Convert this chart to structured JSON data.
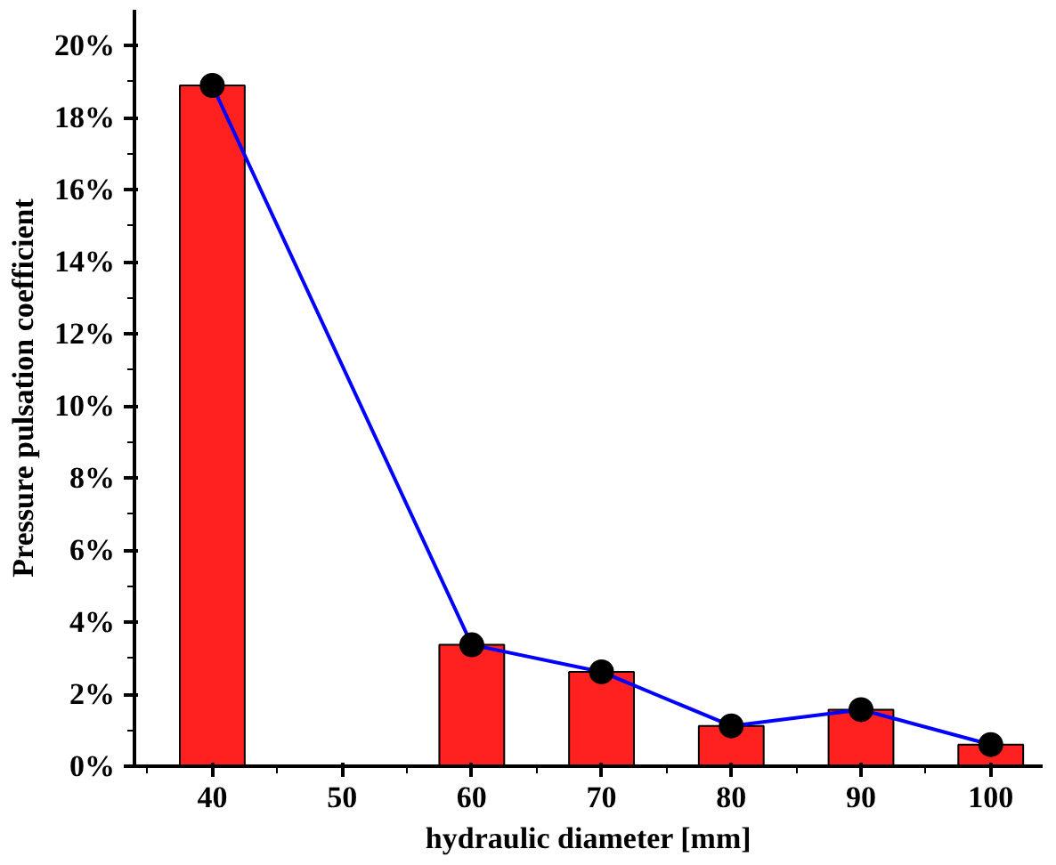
{
  "chart_data": {
    "type": "bar",
    "xlabel": "hydraulic diameter [mm]",
    "ylabel": "Pressure pulsation coefficient",
    "x": [
      40,
      60,
      70,
      80,
      90,
      100
    ],
    "series": [
      {
        "color": "#ff2020",
        "values": [
          18.9,
          3.37,
          2.62,
          1.12,
          1.57,
          0.6
        ]
      },
      {
        "type": "line",
        "color": "#0000ff",
        "marker": "circle",
        "line_style": "solid",
        "values": [
          18.9,
          3.37,
          2.62,
          1.12,
          1.57,
          0.6
        ]
      }
    ],
    "xlim": [
      34,
      104
    ],
    "xticks": [
      40,
      50,
      60,
      70,
      80,
      90,
      100
    ],
    "ylim": [
      0,
      21
    ],
    "yticks": [
      {
        "value": 0,
        "label": "0%"
      },
      {
        "value": 2,
        "label": "2%"
      },
      {
        "value": 4,
        "label": "4%"
      },
      {
        "value": 6,
        "label": "6%"
      },
      {
        "value": 8,
        "label": "8%"
      },
      {
        "value": 10,
        "label": "10%"
      },
      {
        "value": 12,
        "label": "12%"
      },
      {
        "value": 14,
        "label": "14%"
      },
      {
        "value": 16,
        "label": "16%"
      },
      {
        "value": 18,
        "label": "18%"
      },
      {
        "value": 20,
        "label": "20%"
      }
    ],
    "grid": false
  }
}
